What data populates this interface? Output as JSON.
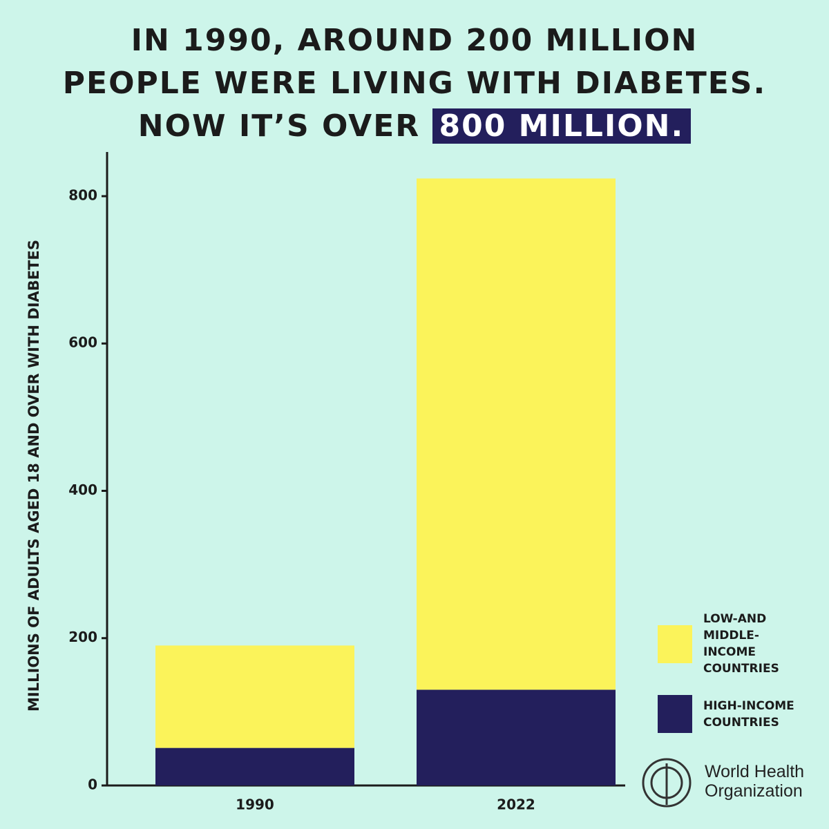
{
  "chart_data": {
    "type": "stacked-bar",
    "title_lines": [
      "IN 1990, AROUND 200 MILLION",
      "PEOPLE WERE LIVING WITH DIABETES.",
      "NOW IT’S OVER"
    ],
    "title_highlight": "800 MILLION.",
    "y_label": "MILLIONS OF ADULTS AGED 18 AND OVER WITH DIABETES",
    "categories": [
      "1990",
      "2022"
    ],
    "series": [
      {
        "name": "HIGH-INCOME COUNTRIES",
        "color": "#231f5c",
        "values": [
          51,
          130
        ]
      },
      {
        "name": "LOW-AND MIDDLE-INCOME COUNTRIES",
        "color": "#fbf35a",
        "values": [
          139,
          694
        ]
      }
    ],
    "ylim": [
      0,
      860
    ],
    "yticks": [
      0,
      200,
      400,
      600,
      800
    ],
    "logo_text": "World Health Organization"
  }
}
